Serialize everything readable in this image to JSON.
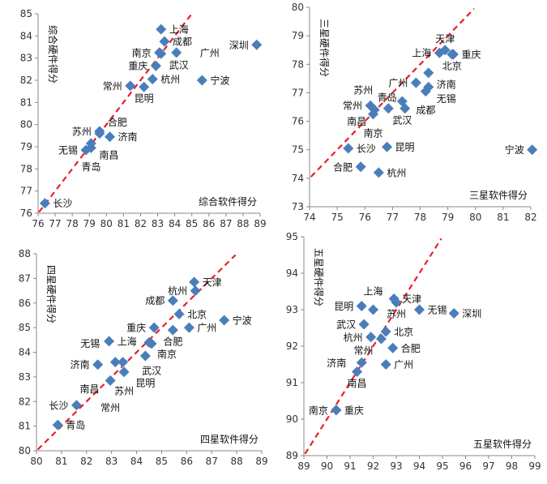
{
  "watermark": "中指数据 CREIS",
  "colors": {
    "marker": "#4a7ebb",
    "diagonal": "#e8202a",
    "axis": "#888888"
  },
  "chart_data": [
    {
      "type": "scatter",
      "xlabel": "综合软件得分",
      "ylabel": "综合硬件得分",
      "xlim": [
        76,
        89
      ],
      "ylim": [
        76,
        85
      ],
      "xticks": [
        76,
        77,
        78,
        79,
        80,
        81,
        82,
        83,
        84,
        85,
        86,
        87,
        88,
        89
      ],
      "yticks": [
        76,
        77,
        78,
        79,
        80,
        81,
        82,
        83,
        84,
        85
      ],
      "reference_line": "y=x",
      "points": [
        {
          "name": "上海",
          "x": 83.2,
          "y": 84.3
        },
        {
          "name": "成都",
          "x": 83.4,
          "y": 83.75
        },
        {
          "name": "南京",
          "x": 83.1,
          "y": 83.25
        },
        {
          "name": "武汉",
          "x": 83.2,
          "y": 83.2
        },
        {
          "name": "广州",
          "x": 84.1,
          "y": 83.25
        },
        {
          "name": "重庆",
          "x": 82.9,
          "y": 82.65
        },
        {
          "name": "深圳",
          "x": 88.8,
          "y": 83.6
        },
        {
          "name": "杭州",
          "x": 82.7,
          "y": 82.05
        },
        {
          "name": "常州",
          "x": 81.4,
          "y": 81.75
        },
        {
          "name": "昆明",
          "x": 82.2,
          "y": 81.7
        },
        {
          "name": "宁波",
          "x": 85.6,
          "y": 82.0
        },
        {
          "name": "苏州",
          "x": 79.6,
          "y": 79.7
        },
        {
          "name": "合肥",
          "x": 79.6,
          "y": 79.6
        },
        {
          "name": "济南",
          "x": 80.2,
          "y": 79.45
        },
        {
          "name": "南昌",
          "x": 79.1,
          "y": 79.15
        },
        {
          "name": "无锡",
          "x": 78.8,
          "y": 78.85
        },
        {
          "name": "青岛",
          "x": 79.1,
          "y": 78.95
        },
        {
          "name": "长沙",
          "x": 76.4,
          "y": 76.45
        }
      ]
    },
    {
      "type": "scatter",
      "xlabel": "三星软件得分",
      "ylabel": "三星硬件得分",
      "xlim": [
        74,
        82
      ],
      "ylim": [
        73,
        80
      ],
      "xticks": [
        74,
        75,
        76,
        77,
        78,
        79,
        80,
        81,
        82
      ],
      "yticks": [
        73,
        74,
        75,
        76,
        77,
        78,
        79,
        80
      ],
      "reference_line": "y=x",
      "points": [
        {
          "name": "天津",
          "x": 78.9,
          "y": 78.5
        },
        {
          "name": "上海",
          "x": 78.7,
          "y": 78.4
        },
        {
          "name": "重庆",
          "x": 79.2,
          "y": 78.35
        },
        {
          "name": "北京",
          "x": 79.15,
          "y": 78.35
        },
        {
          "name": "广州",
          "x": 77.85,
          "y": 77.35
        },
        {
          "name": "济南",
          "x": 78.3,
          "y": 77.7
        },
        {
          "name": "无锡",
          "x": 78.3,
          "y": 77.2
        },
        {
          "name": "成都",
          "x": 78.2,
          "y": 77.05
        },
        {
          "name": "武汉",
          "x": 77.35,
          "y": 76.7
        },
        {
          "name": "青岛",
          "x": 77.45,
          "y": 76.45
        },
        {
          "name": "苏州",
          "x": 76.85,
          "y": 76.45
        },
        {
          "name": "常州",
          "x": 76.2,
          "y": 76.55
        },
        {
          "name": "南昌",
          "x": 76.35,
          "y": 76.4
        },
        {
          "name": "南京",
          "x": 76.3,
          "y": 76.25
        },
        {
          "name": "长沙",
          "x": 75.4,
          "y": 75.05
        },
        {
          "name": "昆明",
          "x": 76.8,
          "y": 75.1
        },
        {
          "name": "合肥",
          "x": 75.85,
          "y": 74.4
        },
        {
          "name": "杭州",
          "x": 76.5,
          "y": 74.2
        },
        {
          "name": "宁波",
          "x": 82.05,
          "y": 75.0
        }
      ]
    },
    {
      "type": "scatter",
      "xlabel": "四星软件得分",
      "ylabel": "四星硬件得分",
      "xlim": [
        80,
        89
      ],
      "ylim": [
        80,
        88
      ],
      "xticks": [
        80,
        81,
        82,
        83,
        84,
        85,
        86,
        87,
        88,
        89
      ],
      "yticks": [
        80,
        81,
        82,
        83,
        84,
        85,
        86,
        87,
        88
      ],
      "reference_line": "y=x",
      "points": [
        {
          "name": "天津",
          "x": 86.3,
          "y": 86.85
        },
        {
          "name": "杭州",
          "x": 86.35,
          "y": 86.5
        },
        {
          "name": "成都",
          "x": 85.45,
          "y": 86.1
        },
        {
          "name": "北京",
          "x": 85.7,
          "y": 85.55
        },
        {
          "name": "重庆",
          "x": 84.7,
          "y": 85.0
        },
        {
          "name": "广州",
          "x": 86.1,
          "y": 85.0
        },
        {
          "name": "合肥",
          "x": 85.45,
          "y": 84.9
        },
        {
          "name": "宁波",
          "x": 87.5,
          "y": 85.3
        },
        {
          "name": "上海",
          "x": 82.9,
          "y": 84.45
        },
        {
          "name": "南京",
          "x": 84.5,
          "y": 84.4
        },
        {
          "name": "武汉",
          "x": 84.6,
          "y": 84.35
        },
        {
          "name": "昆明",
          "x": 84.35,
          "y": 83.85
        },
        {
          "name": "无锡",
          "x": 83.15,
          "y": 83.6
        },
        {
          "name": "南昌",
          "x": 83.45,
          "y": 83.6
        },
        {
          "name": "济南",
          "x": 82.45,
          "y": 83.5
        },
        {
          "name": "苏州",
          "x": 83.5,
          "y": 83.2
        },
        {
          "name": "常州",
          "x": 82.95,
          "y": 82.85
        },
        {
          "name": "长沙",
          "x": 81.6,
          "y": 81.85
        },
        {
          "name": "青岛",
          "x": 80.85,
          "y": 81.05
        }
      ]
    },
    {
      "type": "scatter",
      "xlabel": "五星软件得分",
      "ylabel": "五星硬件得分",
      "xlim": [
        89,
        99
      ],
      "ylim": [
        89,
        95
      ],
      "xticks": [
        89,
        90,
        91,
        92,
        93,
        94,
        95,
        96,
        97,
        98,
        99
      ],
      "yticks": [
        89,
        90,
        91,
        92,
        93,
        94,
        95
      ],
      "reference_line": "y=x",
      "points": [
        {
          "name": "天津",
          "x": 92.9,
          "y": 93.3
        },
        {
          "name": "苏州",
          "x": 93.0,
          "y": 93.2
        },
        {
          "name": "昆明",
          "x": 91.5,
          "y": 93.1
        },
        {
          "name": "上海",
          "x": 92.0,
          "y": 93.0
        },
        {
          "name": "深圳",
          "x": 95.5,
          "y": 92.9
        },
        {
          "name": "无锡",
          "x": 94.0,
          "y": 93.0
        },
        {
          "name": "武汉",
          "x": 91.6,
          "y": 92.6
        },
        {
          "name": "北京",
          "x": 92.55,
          "y": 92.4
        },
        {
          "name": "杭州",
          "x": 91.9,
          "y": 92.25
        },
        {
          "name": "常州",
          "x": 92.35,
          "y": 92.2
        },
        {
          "name": "合肥",
          "x": 92.85,
          "y": 91.95
        },
        {
          "name": "济南",
          "x": 91.5,
          "y": 91.55
        },
        {
          "name": "广州",
          "x": 92.55,
          "y": 91.5
        },
        {
          "name": "南昌",
          "x": 91.3,
          "y": 91.3
        },
        {
          "name": "重庆",
          "x": 90.4,
          "y": 90.25
        },
        {
          "name": "南京",
          "x": 90.4,
          "y": 90.25
        }
      ]
    }
  ]
}
